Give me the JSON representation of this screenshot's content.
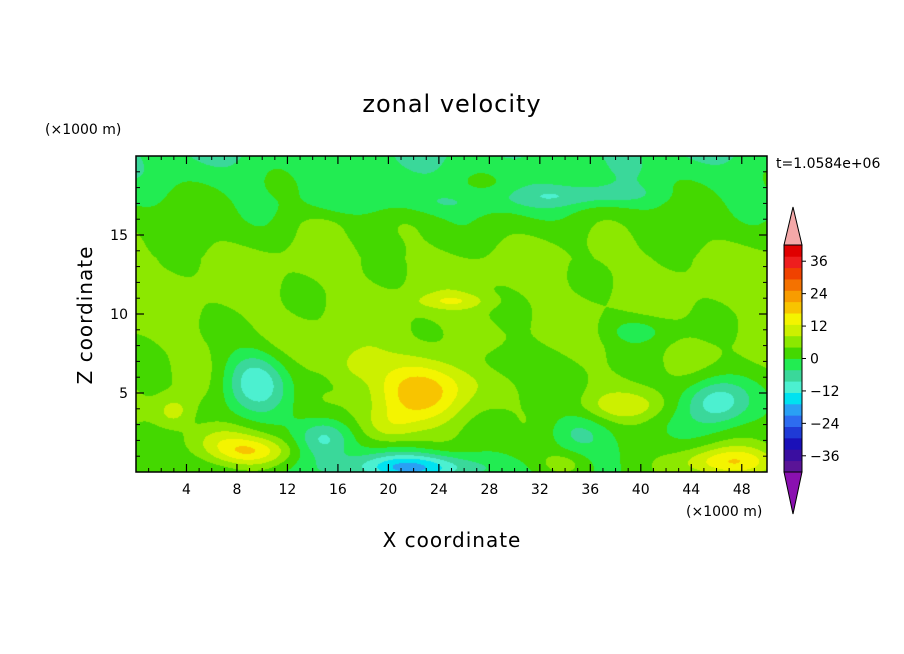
{
  "chart_data": {
    "type": "heatmap",
    "title": "zonal velocity",
    "xlabel": "X coordinate",
    "ylabel": "Z coordinate",
    "x_unit": "(×1000 m)",
    "y_unit": "(×1000 m)",
    "time_label": "t=1.0584e+06",
    "xlim": [
      0,
      50
    ],
    "ylim": [
      0,
      20
    ],
    "x_ticks": [
      4,
      8,
      12,
      16,
      20,
      24,
      28,
      32,
      36,
      40,
      44,
      48
    ],
    "y_ticks": [
      5,
      10,
      15
    ],
    "colorbar": {
      "min": -42,
      "max": 42,
      "step": 4,
      "tick_values": [
        36,
        24,
        12,
        0,
        -12,
        -24,
        -36
      ],
      "tick_labels": [
        "36",
        "24",
        "12",
        "0",
        "−12",
        "−24",
        "−36"
      ],
      "colors": [
        "#5a1497",
        "#3a0ea0",
        "#1a10b8",
        "#1f3ad6",
        "#2d6cf0",
        "#2aa0f4",
        "#00e2f0",
        "#4cf0d0",
        "#3ad89a",
        "#22ec52",
        "#44d800",
        "#8ce800",
        "#ccf000",
        "#f4f400",
        "#f8c400",
        "#f89c00",
        "#f47200",
        "#f04200",
        "#ee1e1e",
        "#e00000"
      ],
      "under_color": "#8a10b0",
      "over_color": "#f4a8a8"
    }
  }
}
